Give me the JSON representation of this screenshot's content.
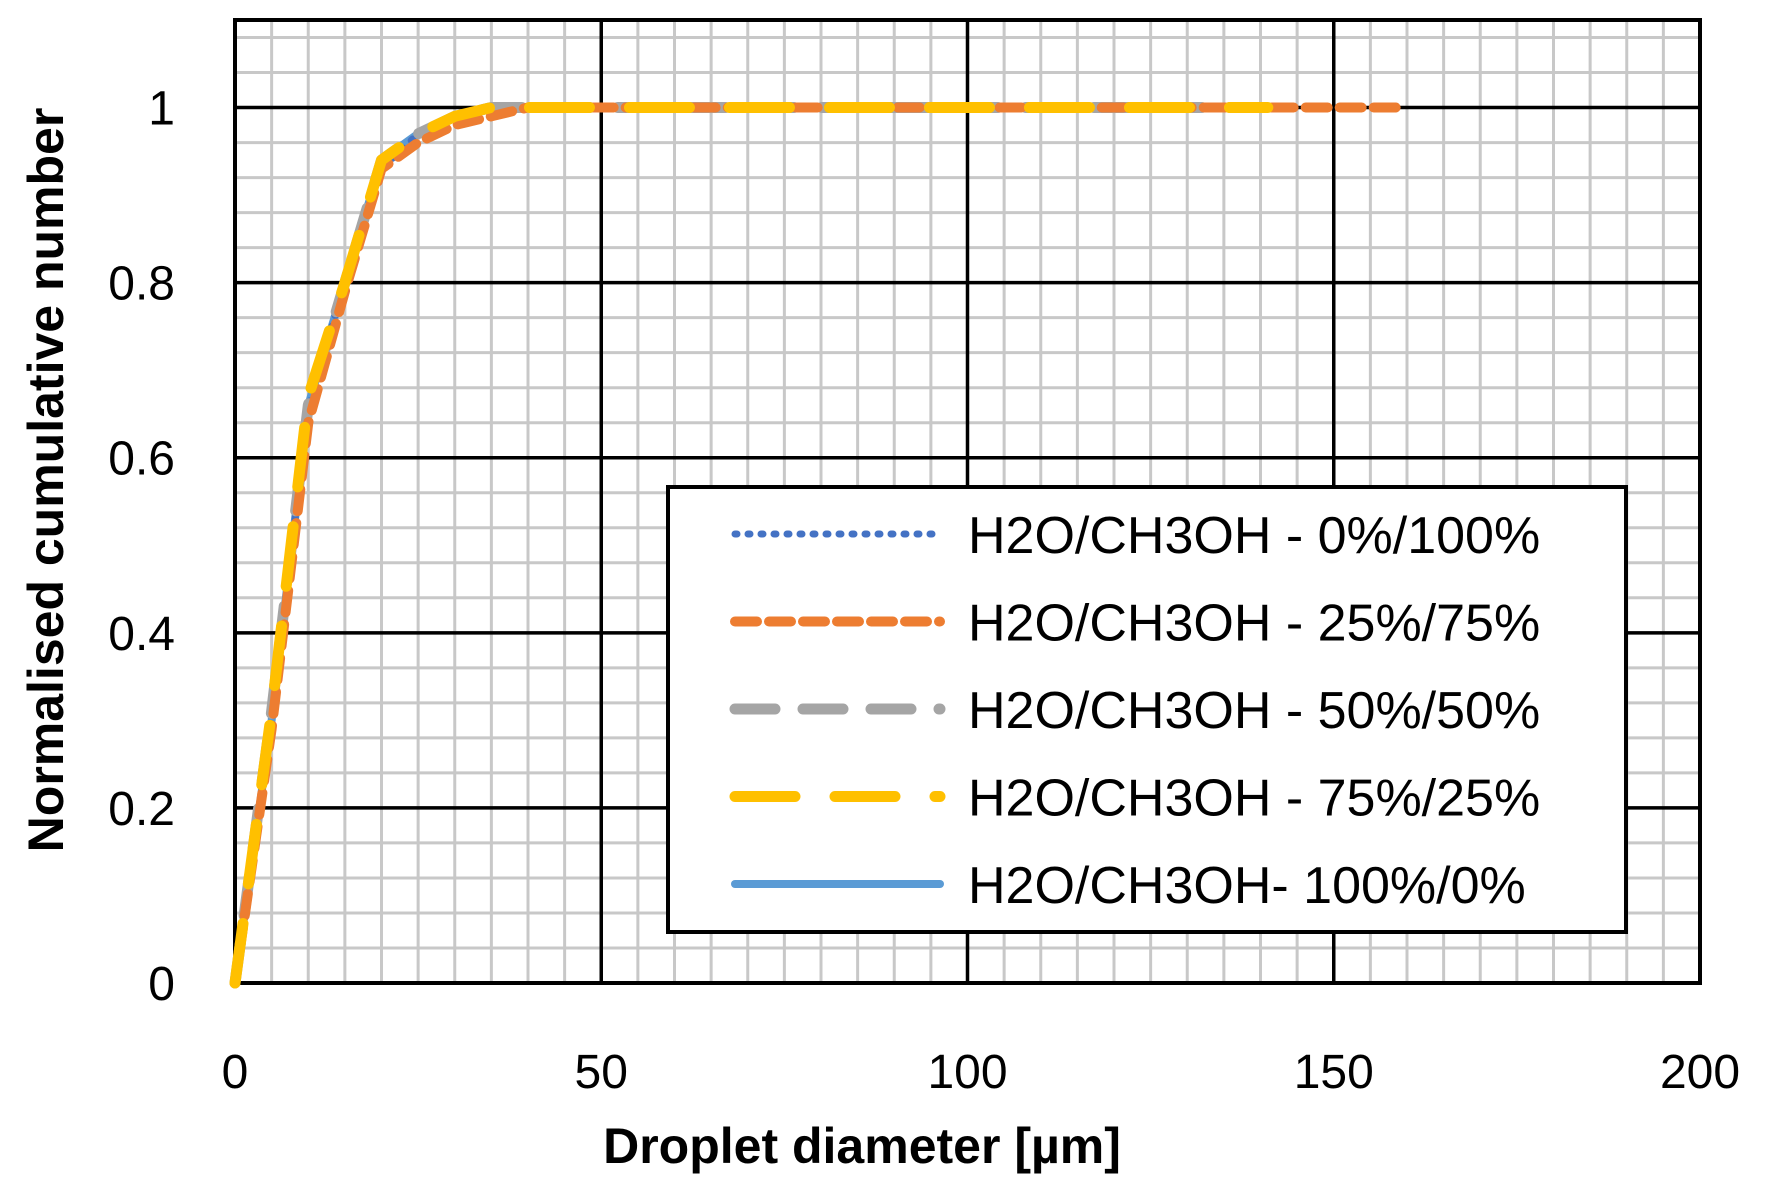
{
  "chart_data": {
    "type": "line",
    "title": "",
    "xlabel": "Droplet diameter [µm]",
    "ylabel": "Normalised cumulative number",
    "xlim": [
      0,
      200
    ],
    "ylim": [
      0,
      1.1
    ],
    "x_ticks": [
      "0",
      "50",
      "100",
      "150",
      "200"
    ],
    "y_ticks": [
      "0",
      "0.2",
      "0.4",
      "0.6",
      "0.8",
      "1"
    ],
    "grid": {
      "major": true,
      "minor": true,
      "x_minor_step": 5,
      "y_minor_step": 0.04
    },
    "legend_position": "bottom-right",
    "series": [
      {
        "name": "H2O/CH3OH - 0%/100%",
        "color": "#4472C4",
        "style": "dotted",
        "x": [
          0,
          5,
          10,
          15,
          20,
          25,
          30,
          35,
          40,
          45,
          50,
          60,
          70,
          80,
          90,
          100,
          110,
          120,
          125
        ],
        "y": [
          0,
          0.3,
          0.66,
          0.8,
          0.93,
          0.97,
          0.99,
          1.0,
          1.0,
          1.0,
          1.0,
          1.0,
          1.0,
          1.0,
          1.0,
          1.0,
          1.0,
          1.0,
          1.0
        ]
      },
      {
        "name": "H2O/CH3OH - 25%/75%",
        "color": "#ED7D31",
        "style": "dashed",
        "x": [
          0,
          5,
          10,
          15,
          20,
          25,
          30,
          35,
          40,
          45,
          50,
          60,
          70,
          80,
          90,
          100,
          110,
          120,
          130,
          140,
          150,
          160
        ],
        "y": [
          0,
          0.29,
          0.64,
          0.79,
          0.93,
          0.96,
          0.98,
          0.99,
          1.0,
          1.0,
          1.0,
          1.0,
          1.0,
          1.0,
          1.0,
          1.0,
          1.0,
          1.0,
          1.0,
          1.0,
          1.0,
          1.0
        ]
      },
      {
        "name": "H2O/CH3OH - 50%/50%",
        "color": "#A5A5A5",
        "style": "long-dash",
        "x": [
          0,
          5,
          10,
          15,
          20,
          25,
          30,
          35,
          40,
          45,
          50,
          60,
          70,
          80,
          90,
          100,
          110,
          120,
          130,
          140
        ],
        "y": [
          0,
          0.31,
          0.66,
          0.8,
          0.94,
          0.97,
          0.99,
          1.0,
          1.0,
          1.0,
          1.0,
          1.0,
          1.0,
          1.0,
          1.0,
          1.0,
          1.0,
          1.0,
          1.0,
          1.0
        ]
      },
      {
        "name": "H2O/CH3OH - 75%/25%",
        "color": "#FFC000",
        "style": "long-dash-gap",
        "x": [
          0,
          5,
          10,
          15,
          20,
          25,
          30,
          35,
          40,
          45,
          50,
          60,
          70,
          80,
          90,
          100,
          110,
          120,
          130,
          141
        ],
        "y": [
          0,
          0.31,
          0.67,
          0.8,
          0.94,
          0.97,
          0.99,
          1.0,
          1.0,
          1.0,
          1.0,
          1.0,
          1.0,
          1.0,
          1.0,
          1.0,
          1.0,
          1.0,
          1.0,
          1.0
        ]
      },
      {
        "name": "H2O/CH3OH- 100%/0%",
        "color": "#5B9BD5",
        "style": "solid",
        "x": [
          0,
          5,
          10,
          15,
          20,
          25,
          30,
          35,
          40,
          45,
          50
        ],
        "y": [
          0,
          0.3,
          0.66,
          0.8,
          0.94,
          0.97,
          0.99,
          1.0,
          1.0,
          1.0,
          1.0
        ]
      }
    ]
  }
}
